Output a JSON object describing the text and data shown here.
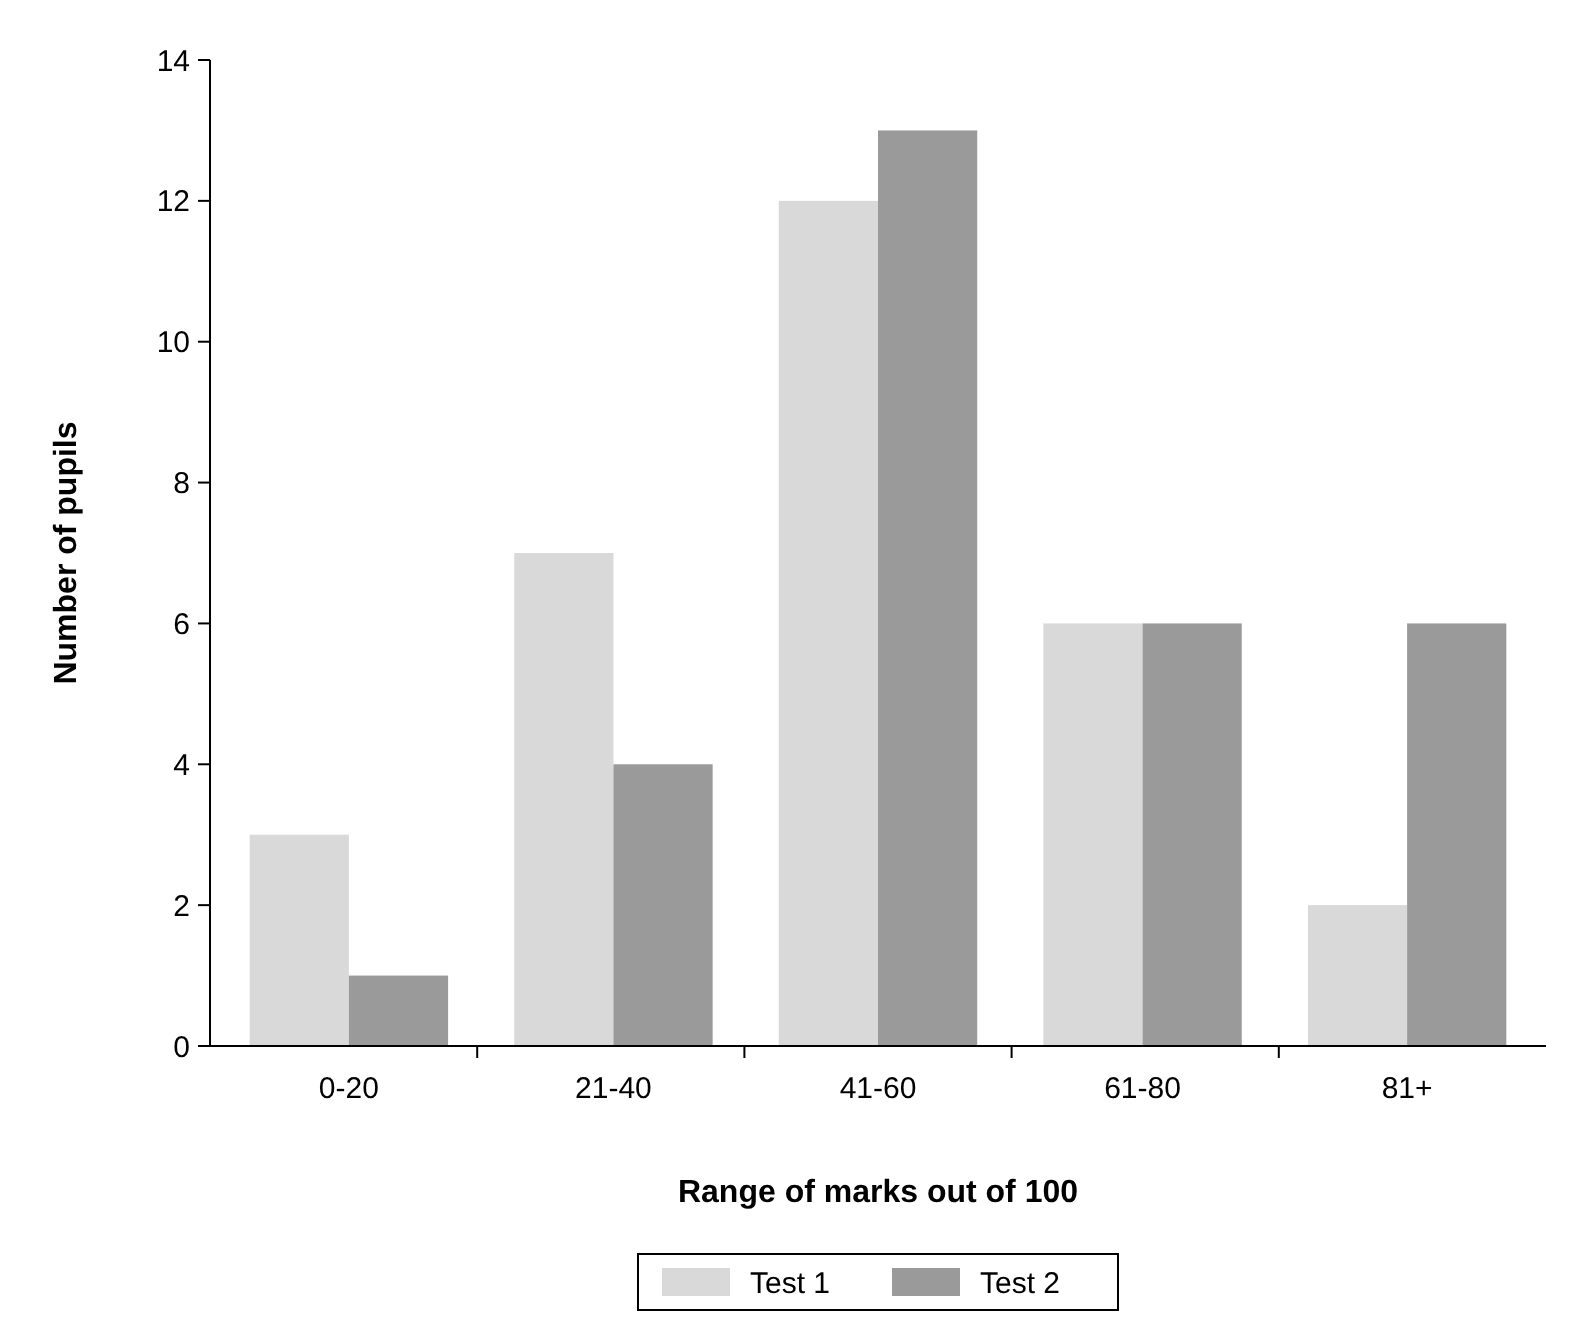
{
  "chart_data": {
    "type": "bar",
    "xlabel": "Range of marks out of 100",
    "ylabel": "Number of pupils",
    "categories": [
      "0-20",
      "21-40",
      "41-60",
      "61-80",
      "81+"
    ],
    "series": [
      {
        "name": "Test 1",
        "color": "#d9d9d9",
        "values": [
          3,
          7,
          12,
          6,
          2
        ]
      },
      {
        "name": "Test 2",
        "color": "#9a9a9a",
        "values": [
          1,
          4,
          13,
          6,
          6
        ]
      }
    ],
    "ylim": [
      0,
      14
    ],
    "yticks": [
      0,
      2,
      4,
      6,
      8,
      10,
      12,
      14
    ],
    "grid": false,
    "legend": "bottom"
  }
}
